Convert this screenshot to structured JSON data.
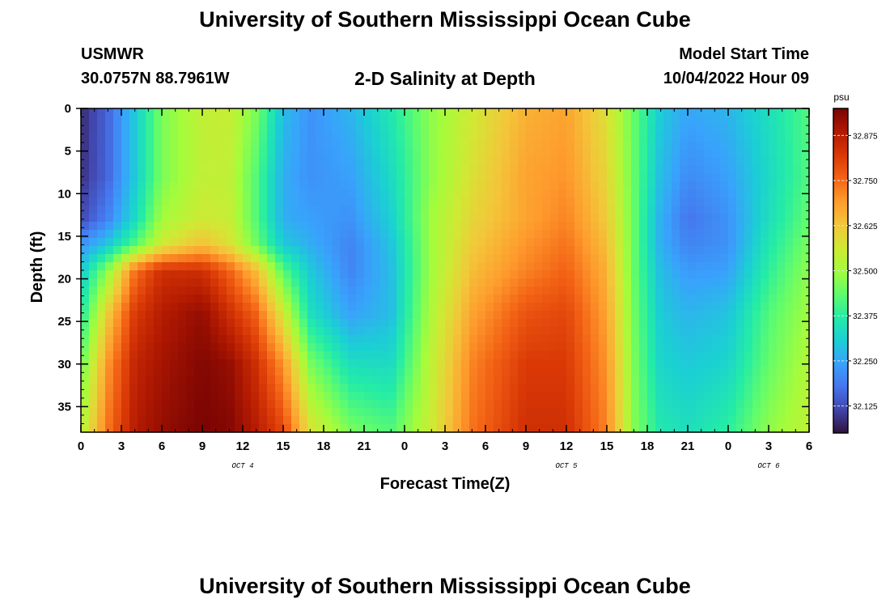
{
  "header": {
    "title": "University of Southern Mississippi Ocean Cube",
    "station_name": "USMWR",
    "station_coords": "30.0757N  88.7961W",
    "plot_title": "2-D Salinity at Depth",
    "start_label": "Model Start Time",
    "start_value": "10/04/2022 Hour 09"
  },
  "footer": {
    "title": "University of Southern Mississippi Ocean Cube"
  },
  "chart_data": {
    "type": "heatmap",
    "title": "2-D Salinity at Depth",
    "xlabel": "Forecast Time(Z)",
    "ylabel": "Depth (ft)",
    "x_start_hours": 0,
    "x_end_hours": 54,
    "x_tick_labels": [
      "0",
      "3",
      "6",
      "9",
      "12",
      "15",
      "18",
      "21",
      "0",
      "3",
      "6",
      "9",
      "12",
      "15",
      "18",
      "21",
      "0",
      "3",
      "6"
    ],
    "date_labels": [
      {
        "text": "OCT 4",
        "hour": 12
      },
      {
        "text": "OCT 5",
        "hour": 36
      },
      {
        "text": "OCT 6",
        "hour": 51
      }
    ],
    "ylim": [
      0,
      38
    ],
    "y_ticks": [
      0,
      5,
      10,
      15,
      20,
      25,
      30,
      35
    ],
    "y_inverted": true,
    "colorbar": {
      "unit": "psu",
      "min": 32.05,
      "max": 32.95,
      "ticks": [
        "32.125",
        "32.250",
        "32.375",
        "32.500",
        "32.625",
        "32.750",
        "32.875"
      ],
      "colors": [
        "#30123b",
        "#4145ab",
        "#4675ed",
        "#39a2fc",
        "#1bcfd4",
        "#24eca6",
        "#61fc6c",
        "#a4fc3b",
        "#d1e834",
        "#f3c63a",
        "#fe9b2d",
        "#f36315",
        "#d93806",
        "#b11901",
        "#7a0403"
      ]
    },
    "depth_profile_points_ft": [
      0,
      8,
      13,
      16,
      19,
      24,
      30,
      38
    ],
    "salinity_keyframes": [
      {
        "hour": 0,
        "values": [
          32.08,
          32.09,
          32.12,
          32.22,
          32.3,
          32.36,
          32.44,
          32.52
        ]
      },
      {
        "hour": 2,
        "values": [
          32.16,
          32.16,
          32.2,
          32.3,
          32.48,
          32.62,
          32.7,
          32.74
        ]
      },
      {
        "hour": 4,
        "values": [
          32.3,
          32.3,
          32.33,
          32.42,
          32.74,
          32.82,
          32.86,
          32.88
        ]
      },
      {
        "hour": 6,
        "values": [
          32.46,
          32.46,
          32.5,
          32.56,
          32.84,
          32.88,
          32.9,
          32.92
        ]
      },
      {
        "hour": 9,
        "values": [
          32.54,
          32.54,
          32.56,
          32.64,
          32.84,
          32.92,
          32.94,
          32.95
        ]
      },
      {
        "hour": 11,
        "values": [
          32.55,
          32.54,
          32.55,
          32.58,
          32.76,
          32.84,
          32.92,
          32.94
        ]
      },
      {
        "hour": 13,
        "values": [
          32.46,
          32.42,
          32.42,
          32.45,
          32.64,
          32.76,
          32.84,
          32.88
        ]
      },
      {
        "hour": 15,
        "values": [
          32.28,
          32.26,
          32.26,
          32.3,
          32.42,
          32.56,
          32.7,
          32.8
        ]
      },
      {
        "hour": 17,
        "values": [
          32.22,
          32.22,
          32.24,
          32.26,
          32.3,
          32.34,
          32.46,
          32.58
        ]
      },
      {
        "hour": 20,
        "values": [
          32.27,
          32.24,
          32.22,
          32.2,
          32.2,
          32.24,
          32.34,
          32.46
        ]
      },
      {
        "hour": 23,
        "values": [
          32.36,
          32.33,
          32.31,
          32.29,
          32.28,
          32.28,
          32.33,
          32.42
        ]
      },
      {
        "hour": 26,
        "values": [
          32.48,
          32.48,
          32.5,
          32.5,
          32.5,
          32.52,
          32.54,
          32.56
        ]
      },
      {
        "hour": 29,
        "values": [
          32.56,
          32.58,
          32.6,
          32.62,
          32.64,
          32.68,
          32.72,
          32.74
        ]
      },
      {
        "hour": 33,
        "values": [
          32.66,
          32.68,
          32.68,
          32.7,
          32.72,
          32.78,
          32.82,
          32.84
        ]
      },
      {
        "hour": 36,
        "values": [
          32.68,
          32.7,
          32.72,
          32.74,
          32.76,
          32.8,
          32.82,
          32.84
        ]
      },
      {
        "hour": 39,
        "values": [
          32.58,
          32.6,
          32.62,
          32.64,
          32.66,
          32.68,
          32.7,
          32.72
        ]
      },
      {
        "hour": 41,
        "values": [
          32.44,
          32.44,
          32.44,
          32.44,
          32.44,
          32.45,
          32.46,
          32.47
        ]
      },
      {
        "hour": 43,
        "values": [
          32.3,
          32.28,
          32.26,
          32.26,
          32.28,
          32.3,
          32.32,
          32.36
        ]
      },
      {
        "hour": 45,
        "values": [
          32.25,
          32.21,
          32.18,
          32.2,
          32.23,
          32.27,
          32.3,
          32.34
        ]
      },
      {
        "hour": 48,
        "values": [
          32.27,
          32.24,
          32.22,
          32.22,
          32.24,
          32.29,
          32.32,
          32.38
        ]
      },
      {
        "hour": 51,
        "values": [
          32.34,
          32.33,
          32.34,
          32.36,
          32.38,
          32.42,
          32.44,
          32.48
        ]
      },
      {
        "hour": 54,
        "values": [
          32.42,
          32.42,
          32.44,
          32.46,
          32.48,
          32.5,
          32.52,
          32.54
        ]
      }
    ]
  }
}
